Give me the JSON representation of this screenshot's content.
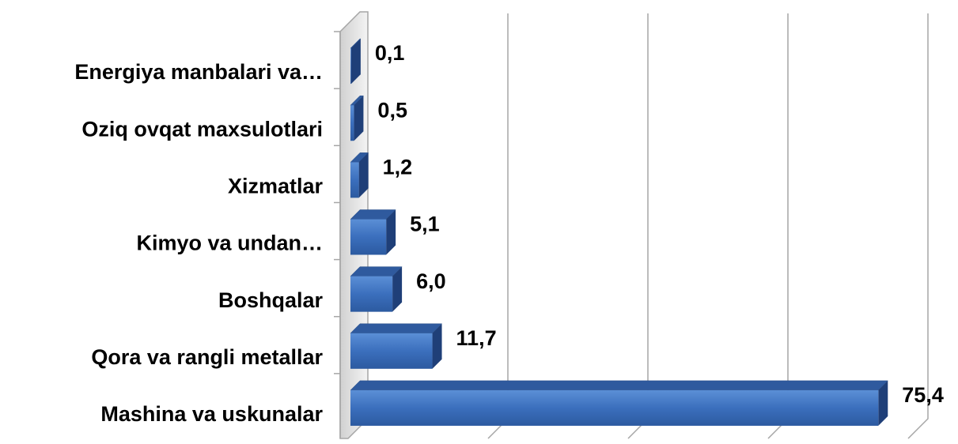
{
  "chart_data": {
    "type": "bar",
    "categories": [
      "Energiya manbalari va…",
      "Oziq ovqat maxsulotlari",
      "Xizmatlar",
      "Kimyo va undan…",
      "Boshqalar",
      "Qora va rangli metallar",
      "Mashina va uskunalar"
    ],
    "values": [
      0.1,
      0.5,
      1.2,
      5.1,
      6.0,
      11.7,
      75.4
    ],
    "value_labels": [
      "0,1",
      "0,5",
      "1,2",
      "5,1",
      "6,0",
      "11,7",
      "75,4"
    ],
    "color": "#3b6fbd",
    "xlim": [
      0,
      80
    ],
    "xticks": [
      0,
      20,
      40,
      60,
      80
    ],
    "grid": true
  }
}
